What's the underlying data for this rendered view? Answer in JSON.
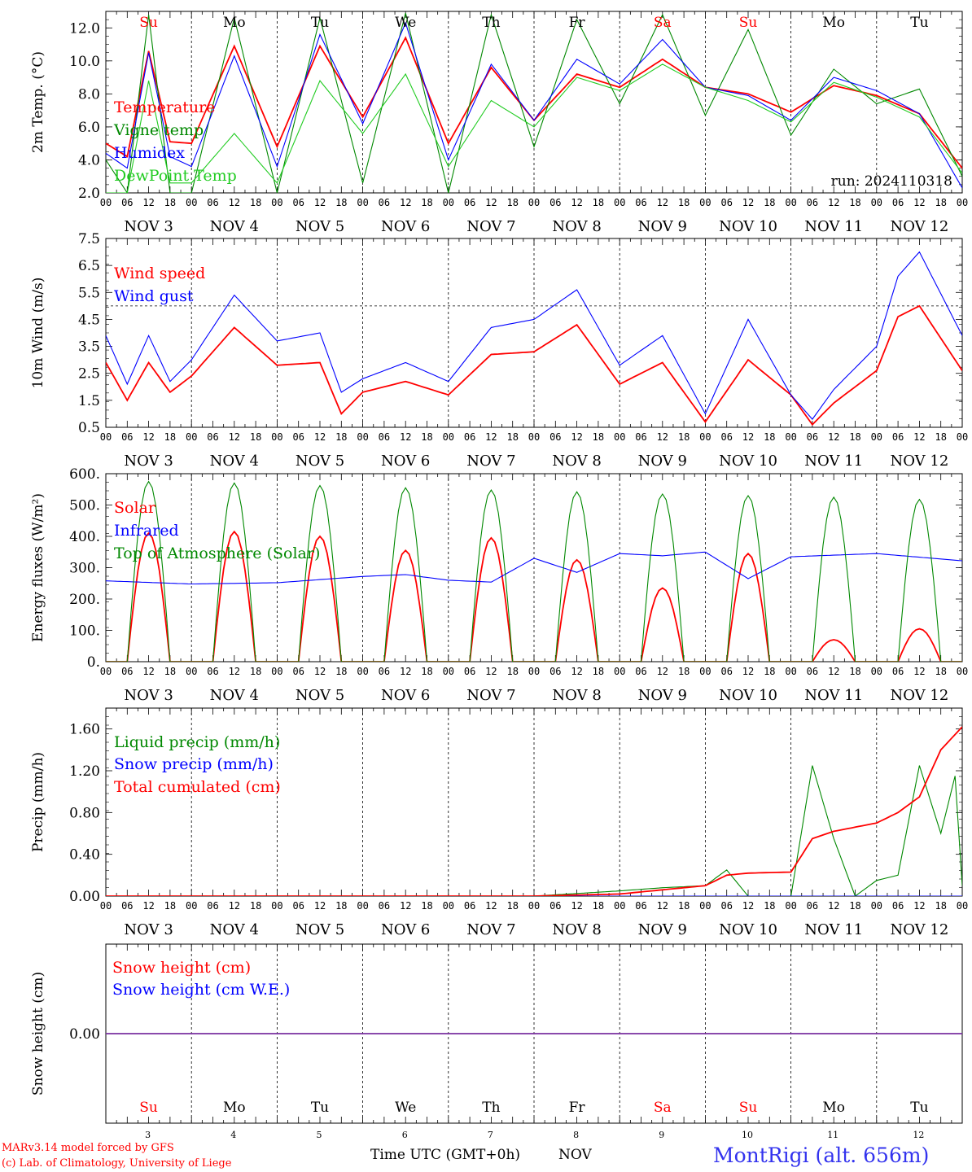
{
  "colors": {
    "red": "#ff0000",
    "green": "#008800",
    "blue": "#0000ff",
    "lightgreen": "#22cc22",
    "title": "#3333ee",
    "snow": "#7a2fa0"
  },
  "x_hour_labels": [
    "00",
    "06",
    "12",
    "18"
  ],
  "x_day_labels": [
    "NOV  3",
    "NOV  4",
    "NOV  5",
    "NOV  6",
    "NOV  7",
    "NOV  8",
    "NOV  9",
    "NOV 10",
    "NOV 11",
    "NOV 12"
  ],
  "weekdays": [
    {
      "label": "Su",
      "color": "red"
    },
    {
      "label": "Mo",
      "color": "black"
    },
    {
      "label": "Tu",
      "color": "black"
    },
    {
      "label": "We",
      "color": "black"
    },
    {
      "label": "Th",
      "color": "black"
    },
    {
      "label": "Fr",
      "color": "black"
    },
    {
      "label": "Sa",
      "color": "red"
    },
    {
      "label": "Su",
      "color": "red"
    },
    {
      "label": "Mo",
      "color": "black"
    },
    {
      "label": "Tu",
      "color": "black"
    }
  ],
  "bottom_day_numbers": [
    "3",
    "4",
    "5",
    "6",
    "7",
    "8",
    "9",
    "10",
    "11",
    "12"
  ],
  "footer": {
    "model": "MARv3.14 model forced by GFS",
    "credit": "(c) Lab. of Climatology, University of Liege",
    "xlabel": "Time UTC (GMT+0h)",
    "month": "NOV",
    "station": "MontRigi (alt. 656m)"
  },
  "chart_data": [
    {
      "type": "line",
      "ylabel": "2m Temp. (°C)",
      "ylim": [
        2.0,
        13.0
      ],
      "yticks": [
        "2.0",
        "4.0",
        "6.0",
        "8.0",
        "10.0",
        "12.0"
      ],
      "annotation": "run: 2024110318",
      "x_unit": "hours since NOV 3 00 UTC",
      "series": [
        {
          "name": "Temperature",
          "color": "red",
          "x": [
            0,
            6,
            12,
            18,
            24,
            36,
            48,
            60,
            72,
            84,
            96,
            108,
            120,
            132,
            144,
            156,
            168,
            180,
            192,
            204,
            216,
            228,
            240
          ],
          "values": [
            5.0,
            4.2,
            10.6,
            5.1,
            5.0,
            10.9,
            4.8,
            10.9,
            6.6,
            11.4,
            5.0,
            9.6,
            6.4,
            9.2,
            8.4,
            10.1,
            8.4,
            8.0,
            6.9,
            8.5,
            7.9,
            6.8,
            3.5
          ]
        },
        {
          "name": "Vigne temp",
          "color": "green",
          "x": [
            0,
            6,
            12,
            18,
            24,
            36,
            48,
            60,
            72,
            84,
            96,
            108,
            120,
            132,
            144,
            156,
            168,
            180,
            192,
            204,
            216,
            228,
            240
          ],
          "values": [
            4.0,
            2.0,
            12.8,
            2.0,
            2.0,
            12.6,
            2.0,
            12.6,
            2.6,
            12.9,
            2.0,
            12.8,
            4.8,
            12.5,
            7.4,
            12.8,
            6.7,
            11.9,
            5.5,
            9.5,
            7.4,
            8.3,
            3.0
          ]
        },
        {
          "name": "Humidex",
          "color": "blue",
          "x": [
            0,
            6,
            12,
            18,
            24,
            36,
            48,
            60,
            72,
            84,
            96,
            108,
            120,
            132,
            144,
            156,
            168,
            180,
            192,
            204,
            216,
            228,
            240
          ],
          "values": [
            4.4,
            3.5,
            10.5,
            4.2,
            3.6,
            10.3,
            3.6,
            11.6,
            6.2,
            12.3,
            4.0,
            9.8,
            6.4,
            10.1,
            8.6,
            11.3,
            8.4,
            7.9,
            6.4,
            9.0,
            8.2,
            6.8,
            2.3
          ]
        },
        {
          "name": "DewPoint Temp",
          "color": "lightgreen",
          "x": [
            0,
            6,
            12,
            18,
            24,
            36,
            48,
            60,
            72,
            84,
            96,
            108,
            120,
            132,
            144,
            156,
            168,
            180,
            192,
            204,
            216,
            228,
            240
          ],
          "values": [
            2.0,
            2.0,
            8.8,
            2.6,
            2.6,
            5.6,
            2.6,
            8.8,
            5.6,
            9.2,
            3.6,
            7.6,
            6.0,
            9.0,
            8.2,
            9.8,
            8.4,
            7.6,
            6.3,
            8.7,
            7.8,
            6.6,
            3.2
          ]
        }
      ]
    },
    {
      "type": "line",
      "ylabel": "10m Wind (m/s)",
      "ylim": [
        0.5,
        7.5
      ],
      "yticks": [
        "0.5",
        "1.5",
        "2.5",
        "3.5",
        "4.5",
        "5.5",
        "6.5",
        "7.5"
      ],
      "reference_line": 5.0,
      "series": [
        {
          "name": "Wind speed",
          "color": "red",
          "x": [
            0,
            6,
            12,
            18,
            24,
            36,
            48,
            60,
            66,
            72,
            84,
            96,
            108,
            120,
            132,
            144,
            156,
            168,
            180,
            192,
            198,
            204,
            216,
            222,
            228,
            240
          ],
          "values": [
            2.9,
            1.5,
            2.9,
            1.8,
            2.4,
            4.2,
            2.8,
            2.9,
            1.0,
            1.8,
            2.2,
            1.7,
            3.2,
            3.3,
            4.3,
            2.1,
            2.9,
            0.7,
            3.0,
            1.7,
            0.6,
            1.4,
            2.6,
            4.6,
            5.0,
            2.6
          ]
        },
        {
          "name": "Wind gust",
          "color": "blue",
          "x": [
            0,
            6,
            12,
            18,
            24,
            36,
            48,
            60,
            66,
            72,
            84,
            96,
            108,
            120,
            132,
            144,
            156,
            168,
            180,
            192,
            198,
            204,
            216,
            222,
            228,
            240
          ],
          "values": [
            3.9,
            2.1,
            3.9,
            2.2,
            3.0,
            5.4,
            3.7,
            4.0,
            1.8,
            2.3,
            2.9,
            2.2,
            4.2,
            4.5,
            5.6,
            2.8,
            3.9,
            1.0,
            4.5,
            1.7,
            0.8,
            1.9,
            3.5,
            6.1,
            7.0,
            3.9
          ]
        }
      ]
    },
    {
      "type": "line",
      "ylabel": "Energy fluxes (W/m²)",
      "ylim": [
        0,
        600
      ],
      "yticks": [
        "0.",
        "100.",
        "200.",
        "300.",
        "400.",
        "500.",
        "600."
      ],
      "series": [
        {
          "name": "Solar",
          "color": "red",
          "peaks": [
            410,
            415,
            400,
            355,
            395,
            325,
            235,
            345,
            70,
            105
          ]
        },
        {
          "name": "Infrared",
          "color": "blue",
          "x": [
            0,
            24,
            48,
            72,
            84,
            96,
            108,
            120,
            132,
            144,
            156,
            168,
            180,
            192,
            216,
            240
          ],
          "values": [
            258,
            248,
            252,
            272,
            278,
            260,
            254,
            330,
            285,
            345,
            338,
            350,
            265,
            335,
            345,
            322
          ]
        },
        {
          "name": "Top of Atmosphere (Solar)",
          "color": "green",
          "peaks": [
            575,
            570,
            562,
            555,
            548,
            542,
            535,
            530,
            525,
            518
          ]
        }
      ]
    },
    {
      "type": "line",
      "ylabel": "Precip (mm/h)",
      "ylim": [
        0,
        1.8
      ],
      "yticks": [
        "0.00",
        "0.40",
        "0.80",
        "1.20",
        "1.60"
      ],
      "series": [
        {
          "name": "Liquid precip (mm/h)",
          "color": "green",
          "x": [
            0,
            120,
            144,
            156,
            168,
            174,
            180,
            192,
            198,
            204,
            210,
            216,
            222,
            228,
            234,
            238,
            240
          ],
          "values": [
            0,
            0,
            0.05,
            0.08,
            0.1,
            0.25,
            0,
            0,
            1.25,
            0.55,
            0,
            0.15,
            0.2,
            1.25,
            0.6,
            1.15,
            0.1
          ]
        },
        {
          "name": "Snow precip (mm/h)",
          "color": "blue",
          "x": [
            0,
            240
          ],
          "values": [
            0,
            0
          ]
        },
        {
          "name": "Total cumulated (cm)",
          "color": "red",
          "x": [
            0,
            120,
            144,
            168,
            174,
            180,
            192,
            198,
            204,
            216,
            222,
            228,
            234,
            240
          ],
          "values": [
            0,
            0,
            0.02,
            0.1,
            0.2,
            0.22,
            0.23,
            0.55,
            0.62,
            0.7,
            0.8,
            0.95,
            1.4,
            1.62
          ]
        }
      ]
    },
    {
      "type": "line",
      "ylabel": "Snow height (cm)",
      "yticks": [
        "0.00"
      ],
      "series": [
        {
          "name": "Snow height (cm)",
          "color": "red",
          "x": [
            0,
            240
          ],
          "values": [
            0,
            0
          ]
        },
        {
          "name": "Snow height (cm W.E.)",
          "color": "blue",
          "x": [
            0,
            240
          ],
          "values": [
            0,
            0
          ]
        }
      ]
    }
  ]
}
